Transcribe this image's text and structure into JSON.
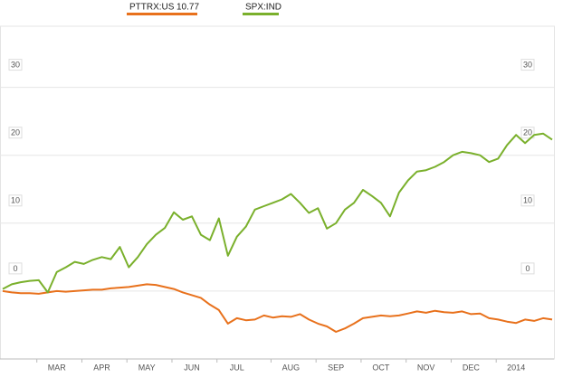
{
  "chart_data": {
    "type": "line",
    "categories": [
      null,
      null,
      null,
      null,
      null,
      null,
      "MAR",
      null,
      null,
      null,
      null,
      "APR",
      null,
      null,
      null,
      null,
      "MAY",
      null,
      null,
      null,
      null,
      "JUN",
      null,
      null,
      null,
      null,
      "JUL",
      null,
      null,
      null,
      null,
      null,
      "AUG",
      null,
      null,
      null,
      null,
      "SEP",
      null,
      null,
      null,
      null,
      "OCT",
      null,
      null,
      null,
      null,
      "NOV",
      null,
      null,
      null,
      null,
      "DEC",
      null,
      null,
      null,
      null,
      "2014",
      null,
      null,
      null,
      null
    ],
    "series": [
      {
        "name": "PTTRX:US",
        "price": 10.77,
        "color": "#e8711c",
        "values": [
          0,
          -0.2,
          -0.3,
          -0.3,
          -0.4,
          -0.2,
          0,
          -0.1,
          0,
          0.1,
          0.2,
          0.2,
          0.4,
          0.5,
          0.6,
          0.8,
          1.0,
          0.9,
          0.6,
          0.3,
          -0.2,
          -0.6,
          -1.0,
          -2.0,
          -2.8,
          -4.8,
          -4.0,
          -4.3,
          -4.2,
          -3.6,
          -3.9,
          -3.7,
          -3.8,
          -3.4,
          -4.2,
          -4.8,
          -5.2,
          -6.0,
          -5.5,
          -4.8,
          -4.0,
          -3.8,
          -3.6,
          -3.7,
          -3.6,
          -3.3,
          -3.0,
          -3.2,
          -2.9,
          -3.1,
          -3.2,
          -3.0,
          -3.4,
          -3.3,
          -4.0,
          -4.2,
          -4.5,
          -4.7,
          -4.2,
          -4.4,
          -4.0,
          -4.2
        ]
      },
      {
        "name": "SPX:IND",
        "color": "#7ab02c",
        "values": [
          0.3,
          1.0,
          1.3,
          1.5,
          1.6,
          -0.2,
          2.8,
          3.5,
          4.3,
          4.0,
          4.6,
          5.0,
          4.7,
          6.5,
          3.5,
          5.0,
          6.9,
          8.3,
          9.3,
          11.6,
          10.5,
          11.0,
          8.3,
          7.5,
          10.7,
          5.2,
          8.0,
          9.5,
          12.0,
          12.5,
          13.0,
          13.5,
          14.3,
          13.0,
          11.5,
          12.2,
          9.2,
          10.0,
          12.0,
          13.0,
          14.9,
          14.0,
          13.0,
          11.0,
          14.5,
          16.3,
          17.6,
          17.8,
          18.3,
          19.0,
          20.0,
          20.5,
          20.3,
          20.0,
          19.0,
          19.5,
          21.5,
          23.0,
          21.8,
          23.0,
          23.2,
          22.3
        ]
      }
    ],
    "ylim": [
      -10,
      39
    ],
    "yticks": [
      0,
      10,
      20,
      30
    ],
    "grid": true
  }
}
